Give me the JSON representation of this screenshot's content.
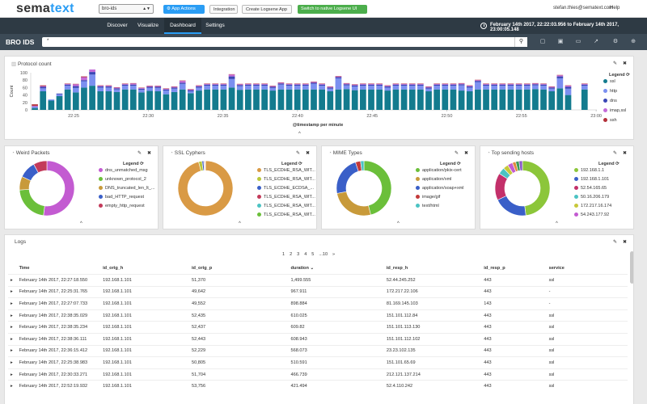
{
  "topbar": {
    "logo_a": "sema",
    "logo_b": "text",
    "app_select": "bro-ids",
    "app_actions": "App Actions",
    "integration": "Integration",
    "create_logsene": "Create Logsene App",
    "switch_native": "Switch to native Logsene UI",
    "user_email": "stefan.thies@sematext.com",
    "help": "Help"
  },
  "nav": {
    "tabs": [
      {
        "label": "Discover"
      },
      {
        "label": "Visualize"
      },
      {
        "label": "Dashboard"
      },
      {
        "label": "Settings"
      }
    ],
    "time_range": "February 14th 2017, 22:22:03.956 to February 14th 2017, 23:00:05.148"
  },
  "titlebar": {
    "title": "BRO IDS",
    "query": "*"
  },
  "colors": {
    "ssl": "#137b8e",
    "http": "#7b8ff0",
    "dns": "#3a47b5",
    "imap_ssl": "#c36bd8",
    "ssh": "#b3303a"
  },
  "protocol_panel": {
    "title": "Protocol count",
    "legend_title": "Legend",
    "legend": [
      {
        "label": "ssl",
        "color": "#137b8e"
      },
      {
        "label": "http",
        "color": "#7b8ff0"
      },
      {
        "label": "dns",
        "color": "#3a47b5"
      },
      {
        "label": "imap,ssl",
        "color": "#c36bd8"
      },
      {
        "label": "ssh",
        "color": "#b3303a"
      }
    ]
  },
  "chart_data": {
    "type": "bar",
    "xlabel": "@timestamp per minute",
    "ylabel": "Count",
    "ylim": [
      0,
      100
    ],
    "yticks": [
      "100",
      "80",
      "60",
      "40",
      "20",
      "0"
    ],
    "xticks": [
      "22:25",
      "22:30",
      "22:35",
      "22:40",
      "22:45",
      "22:50",
      "22:55",
      "23:00"
    ],
    "series": [
      {
        "name": "ssl",
        "values": [
          5,
          50,
          25,
          37,
          55,
          47,
          60,
          65,
          50,
          50,
          48,
          55,
          55,
          47,
          51,
          50,
          42,
          48,
          55,
          45,
          52,
          55,
          55,
          55,
          60,
          54,
          55,
          55,
          55,
          52,
          55,
          55,
          55,
          55,
          55,
          55,
          50,
          55,
          56,
          53,
          55,
          55,
          55,
          52,
          55,
          55,
          55,
          55,
          50,
          55,
          55,
          55,
          52,
          50,
          55,
          55,
          55,
          55,
          55,
          55,
          55,
          56,
          55,
          50,
          58,
          40,
          0,
          55,
          0
        ]
      },
      {
        "name": "http",
        "values": [
          3,
          8,
          3,
          5,
          10,
          12,
          17,
          30,
          10,
          10,
          7,
          10,
          10,
          7,
          8,
          9,
          10,
          9,
          15,
          5,
          8,
          10,
          10,
          10,
          23,
          10,
          10,
          10,
          10,
          7,
          13,
          10,
          10,
          10,
          15,
          10,
          7,
          30,
          10,
          10,
          10,
          10,
          10,
          8,
          10,
          10,
          10,
          10,
          7,
          10,
          10,
          10,
          14,
          10,
          20,
          10,
          10,
          10,
          10,
          10,
          10,
          10,
          10,
          7,
          27,
          17,
          0,
          10,
          0
        ]
      },
      {
        "name": "dns",
        "values": [
          1,
          4,
          0,
          2,
          3,
          5,
          3,
          7,
          3,
          3,
          3,
          3,
          3,
          3,
          3,
          3,
          3,
          3,
          3,
          3,
          3,
          3,
          3,
          3,
          7,
          3,
          3,
          3,
          3,
          3,
          3,
          3,
          3,
          3,
          3,
          3,
          3,
          3,
          3,
          3,
          3,
          3,
          3,
          3,
          3,
          3,
          3,
          3,
          3,
          3,
          3,
          3,
          3,
          3,
          3,
          3,
          3,
          3,
          3,
          3,
          3,
          3,
          3,
          3,
          5,
          5,
          0,
          3,
          0
        ]
      },
      {
        "name": "imap,ssl",
        "values": [
          2,
          2,
          0,
          0,
          2,
          5,
          8,
          8,
          2,
          2,
          2,
          2,
          3,
          2,
          2,
          2,
          2,
          2,
          5,
          2,
          2,
          2,
          2,
          2,
          5,
          2,
          2,
          2,
          2,
          2,
          2,
          2,
          2,
          2,
          2,
          2,
          2,
          2,
          2,
          2,
          2,
          2,
          2,
          2,
          2,
          2,
          2,
          2,
          2,
          2,
          2,
          2,
          2,
          2,
          2,
          2,
          2,
          2,
          2,
          2,
          2,
          2,
          2,
          2,
          3,
          3,
          0,
          2,
          0
        ]
      },
      {
        "name": "ssh",
        "values": [
          4,
          2,
          0,
          0,
          1,
          1,
          2,
          1,
          1,
          1,
          1,
          1,
          1,
          1,
          1,
          1,
          1,
          1,
          1,
          1,
          1,
          1,
          1,
          1,
          1,
          1,
          1,
          1,
          1,
          1,
          1,
          1,
          1,
          1,
          1,
          1,
          1,
          1,
          1,
          1,
          1,
          1,
          1,
          1,
          1,
          1,
          1,
          1,
          1,
          1,
          1,
          1,
          1,
          1,
          1,
          1,
          1,
          1,
          1,
          1,
          1,
          1,
          1,
          1,
          1,
          1,
          0,
          1,
          0
        ]
      }
    ]
  },
  "pies": [
    {
      "title": "Weird Packets",
      "legend_title": "Legend",
      "slices": [
        {
          "label": "dns_unmatched_msg",
          "value": 52,
          "color": "#c35bd1"
        },
        {
          "label": "unknown_protocol_2",
          "value": 22,
          "color": "#6bbf3a"
        },
        {
          "label": "DNS_truncated_len_lt_...",
          "value": 8,
          "color": "#c89a3a"
        },
        {
          "label": "bad_HTTP_request",
          "value": 10,
          "color": "#3a5fc8"
        },
        {
          "label": "empty_http_request",
          "value": 8,
          "color": "#c33a5a"
        }
      ]
    },
    {
      "title": "SSL Cyphers",
      "legend_title": "Legend",
      "slices": [
        {
          "label": "TLS_ECDHE_RSA_WIT...",
          "value": 96,
          "color": "#d99a45"
        },
        {
          "label": "TLS_ECDHE_RSA_WIT...",
          "value": 2,
          "color": "#b9c83a"
        },
        {
          "label": "TLS_ECDHE_ECDSA_...",
          "value": 1,
          "color": "#3a5fc8"
        },
        {
          "label": "TLS_ECDHE_RSA_WIT...",
          "value": 0.5,
          "color": "#c33a5a"
        },
        {
          "label": "TLS_ECDHE_RSA_WIT...",
          "value": 0.3,
          "color": "#4bc3c3"
        },
        {
          "label": "TLS_ECDHE_RSA_WIT...",
          "value": 0.2,
          "color": "#6bbf3a"
        }
      ]
    },
    {
      "title": "MIME Types",
      "legend_title": "Legend",
      "slices": [
        {
          "label": "application/pkix-cert",
          "value": 46,
          "color": "#6bbf3a"
        },
        {
          "label": "application/xml",
          "value": 26,
          "color": "#c89a3a"
        },
        {
          "label": "application/soap+xml",
          "value": 23,
          "color": "#3a5fc8"
        },
        {
          "label": "image/gif",
          "value": 3,
          "color": "#c33a3a"
        },
        {
          "label": "text/html",
          "value": 2,
          "color": "#4bc3c3"
        }
      ]
    },
    {
      "title": "Top sending hosts",
      "legend_title": "Legend",
      "slices": [
        {
          "label": "192.168.1.1",
          "value": 48,
          "color": "#8cc63a"
        },
        {
          "label": "192.168.1.101",
          "value": 20,
          "color": "#3a5fc8"
        },
        {
          "label": "52.54.165.65",
          "value": 16,
          "color": "#c3306a"
        },
        {
          "label": "50.16.206.179",
          "value": 4,
          "color": "#4bc3c3"
        },
        {
          "label": "172.217.16.174",
          "value": 3,
          "color": "#c8c83a"
        },
        {
          "label": "54.243.177.92",
          "value": 3,
          "color": "#c35bd1"
        },
        {
          "label": "",
          "value": 2,
          "color": "#e08a3a"
        },
        {
          "label": "",
          "value": 2,
          "color": "#3a9a5a"
        },
        {
          "label": "",
          "value": 2,
          "color": "#8a5ac8"
        }
      ]
    }
  ],
  "logs": {
    "title": "Logs",
    "pages": [
      "1",
      "2",
      "3",
      "4",
      "5",
      "...10",
      "»"
    ],
    "columns": [
      "Time",
      "id_orig_h",
      "id_orig_p",
      "duration",
      "id_resp_h",
      "id_resp_p",
      "service"
    ],
    "rows": [
      [
        "February 14th 2017, 22:27:18.550",
        "192.168.1.101",
        "51,370",
        "1,499.555",
        "52.44.245.252",
        "443",
        "ssl"
      ],
      [
        "February 14th 2017, 22:25:31.765",
        "192.168.1.101",
        "49,642",
        "967.911",
        "172.217.22.106",
        "443",
        "-"
      ],
      [
        "February 14th 2017, 22:27:07.733",
        "192.168.1.101",
        "49,552",
        "898.884",
        "81.169.145.103",
        "143",
        "-"
      ],
      [
        "February 14th 2017, 22:38:35.029",
        "192.168.1.101",
        "52,435",
        "610.025",
        "151.101.112.84",
        "443",
        "ssl"
      ],
      [
        "February 14th 2017, 22:38:35.234",
        "192.168.1.101",
        "52,437",
        "609.82",
        "151.101.113.130",
        "443",
        "ssl"
      ],
      [
        "February 14th 2017, 22:38:36.111",
        "192.168.1.101",
        "52,443",
        "608.943",
        "151.101.112.102",
        "443",
        "ssl"
      ],
      [
        "February 14th 2017, 22:36:15.412",
        "192.168.1.101",
        "52,229",
        "568.073",
        "23.23.102.135",
        "443",
        "ssl"
      ],
      [
        "February 14th 2017, 22:25:38.983",
        "192.168.1.101",
        "50,805",
        "510.591",
        "151.101.65.69",
        "443",
        "ssl"
      ],
      [
        "February 14th 2017, 22:30:33.271",
        "192.168.1.101",
        "51,704",
        "466.739",
        "212.121.137.214",
        "443",
        "ssl"
      ],
      [
        "February 14th 2017, 22:52:19.932",
        "192.168.1.101",
        "53,756",
        "421.494",
        "52.4.110.242",
        "443",
        "ssl"
      ]
    ]
  }
}
